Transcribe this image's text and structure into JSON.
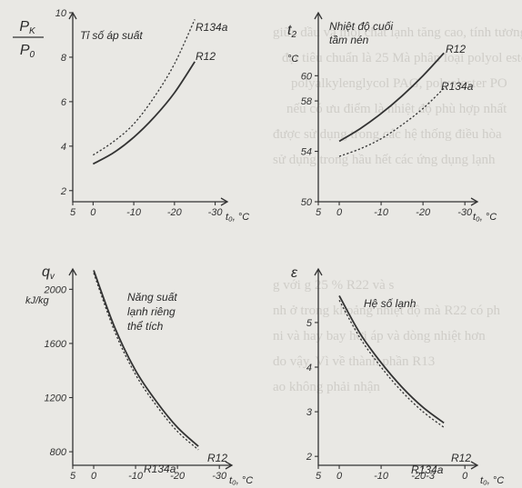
{
  "background_text": [
    "giữa dầu và môi chất lạnh tăng cao, tính tương hòa",
    "đạt tiêu chuẩn là 25 Mà phân loại polyol ester",
    "polyalkylenglycol PAG, polyolester PO",
    "nếu có ưu điểm là nhiệt độ phù hợp nhất",
    "được sử dụng trong các hệ thống điều hòa",
    "sử dụng trong hầu hết các ứng dụng lạnh",
    "g với g 25 % R22 và s",
    "nh ở trong khoảng nhiệt độ mà R22 có ph",
    "ni và hay bay hơi áp và dòng nhiệt hơn",
    "do vậy. Vì về thành phần R13",
    "ao không phải nhận"
  ],
  "chart_data": [
    {
      "type": "line",
      "title": "Tỉ số áp suất",
      "ylabel": "PK / P0",
      "ylabel_num": "P",
      "ylabel_num_sub": "K",
      "ylabel_den": "P",
      "ylabel_den_sub": "0",
      "xlabel": "t₀, °C",
      "x_ticks": [
        "5",
        "0",
        "-10",
        "-20",
        "-30"
      ],
      "y_ticks": [
        "2",
        "4",
        "6",
        "8",
        "10"
      ],
      "xlim": [
        5,
        -33
      ],
      "ylim": [
        1.5,
        10
      ],
      "series": [
        {
          "name": "R134a",
          "style": "dotted",
          "x": [
            0,
            -5,
            -10,
            -15,
            -20,
            -25
          ],
          "y": [
            3.6,
            4.2,
            5.0,
            6.2,
            7.7,
            9.7
          ]
        },
        {
          "name": "R12",
          "style": "solid",
          "x": [
            0,
            -5,
            -10,
            -15,
            -20,
            -25
          ],
          "y": [
            3.2,
            3.7,
            4.4,
            5.3,
            6.4,
            7.8
          ]
        }
      ]
    },
    {
      "type": "line",
      "title_line1": "Nhiệt độ cuối",
      "title_line2": "tầm nén",
      "ylabel": "t2",
      "ylabel_main": "t",
      "ylabel_sub": "2",
      "yunit": "°C",
      "xlabel": "t₀, °C",
      "x_ticks": [
        "5",
        "0",
        "-10",
        "-20",
        "-30"
      ],
      "y_ticks": [
        "50",
        "54",
        "58",
        "60"
      ],
      "xlim": [
        5,
        -33
      ],
      "ylim": [
        50,
        65
      ],
      "series": [
        {
          "name": "R12",
          "style": "solid",
          "x": [
            0,
            -5,
            -10,
            -15,
            -20,
            -25
          ],
          "y": [
            54.8,
            55.8,
            57.0,
            58.4,
            60.0,
            61.8
          ]
        },
        {
          "name": "R134a",
          "style": "dotted",
          "x": [
            0,
            -5,
            -10,
            -15,
            -20,
            -25
          ],
          "y": [
            53.6,
            54.2,
            55.0,
            56.1,
            57.4,
            59.0
          ]
        }
      ]
    },
    {
      "type": "line",
      "title_line1": "Năng suất",
      "title_line2": "lạnh riêng",
      "title_line3": "thể tích",
      "ylabel": "qv",
      "ylabel_main": "q",
      "ylabel_sub": "v",
      "yunit": "kJ/kg",
      "xlabel": "t₀, °C",
      "x_ticks": [
        "5",
        "0",
        "-10",
        "-20",
        "-30"
      ],
      "y_ticks": [
        "800",
        "1200",
        "1600",
        "2000"
      ],
      "xlim": [
        5,
        -33
      ],
      "ylim": [
        700,
        2150
      ],
      "series": [
        {
          "name": "R12",
          "style": "solid",
          "x": [
            0,
            -5,
            -10,
            -15,
            -20,
            -25
          ],
          "y": [
            2140,
            1720,
            1400,
            1170,
            980,
            840
          ]
        },
        {
          "name": "R134a",
          "style": "dotted",
          "x": [
            0,
            -5,
            -10,
            -15,
            -20,
            -25
          ],
          "y": [
            2120,
            1690,
            1370,
            1140,
            950,
            815
          ]
        }
      ]
    },
    {
      "type": "line",
      "title": "Hệ số lạnh",
      "ylabel": "ε",
      "xlabel": "t₀, °C",
      "x_ticks": [
        "5",
        "0",
        "-10",
        "-20-3",
        "0"
      ],
      "y_ticks": [
        "2",
        "3",
        "4",
        "5"
      ],
      "xlim": [
        5,
        -33
      ],
      "ylim": [
        1.8,
        6.2
      ],
      "series": [
        {
          "name": "R12",
          "style": "solid",
          "x": [
            0,
            -5,
            -10,
            -15,
            -20,
            -25
          ],
          "y": [
            5.6,
            4.75,
            4.1,
            3.55,
            3.1,
            2.75
          ]
        },
        {
          "name": "R134a",
          "style": "dotted",
          "x": [
            0,
            -5,
            -10,
            -15,
            -20,
            -25
          ],
          "y": [
            5.5,
            4.65,
            4.0,
            3.45,
            3.0,
            2.65
          ]
        }
      ]
    }
  ]
}
